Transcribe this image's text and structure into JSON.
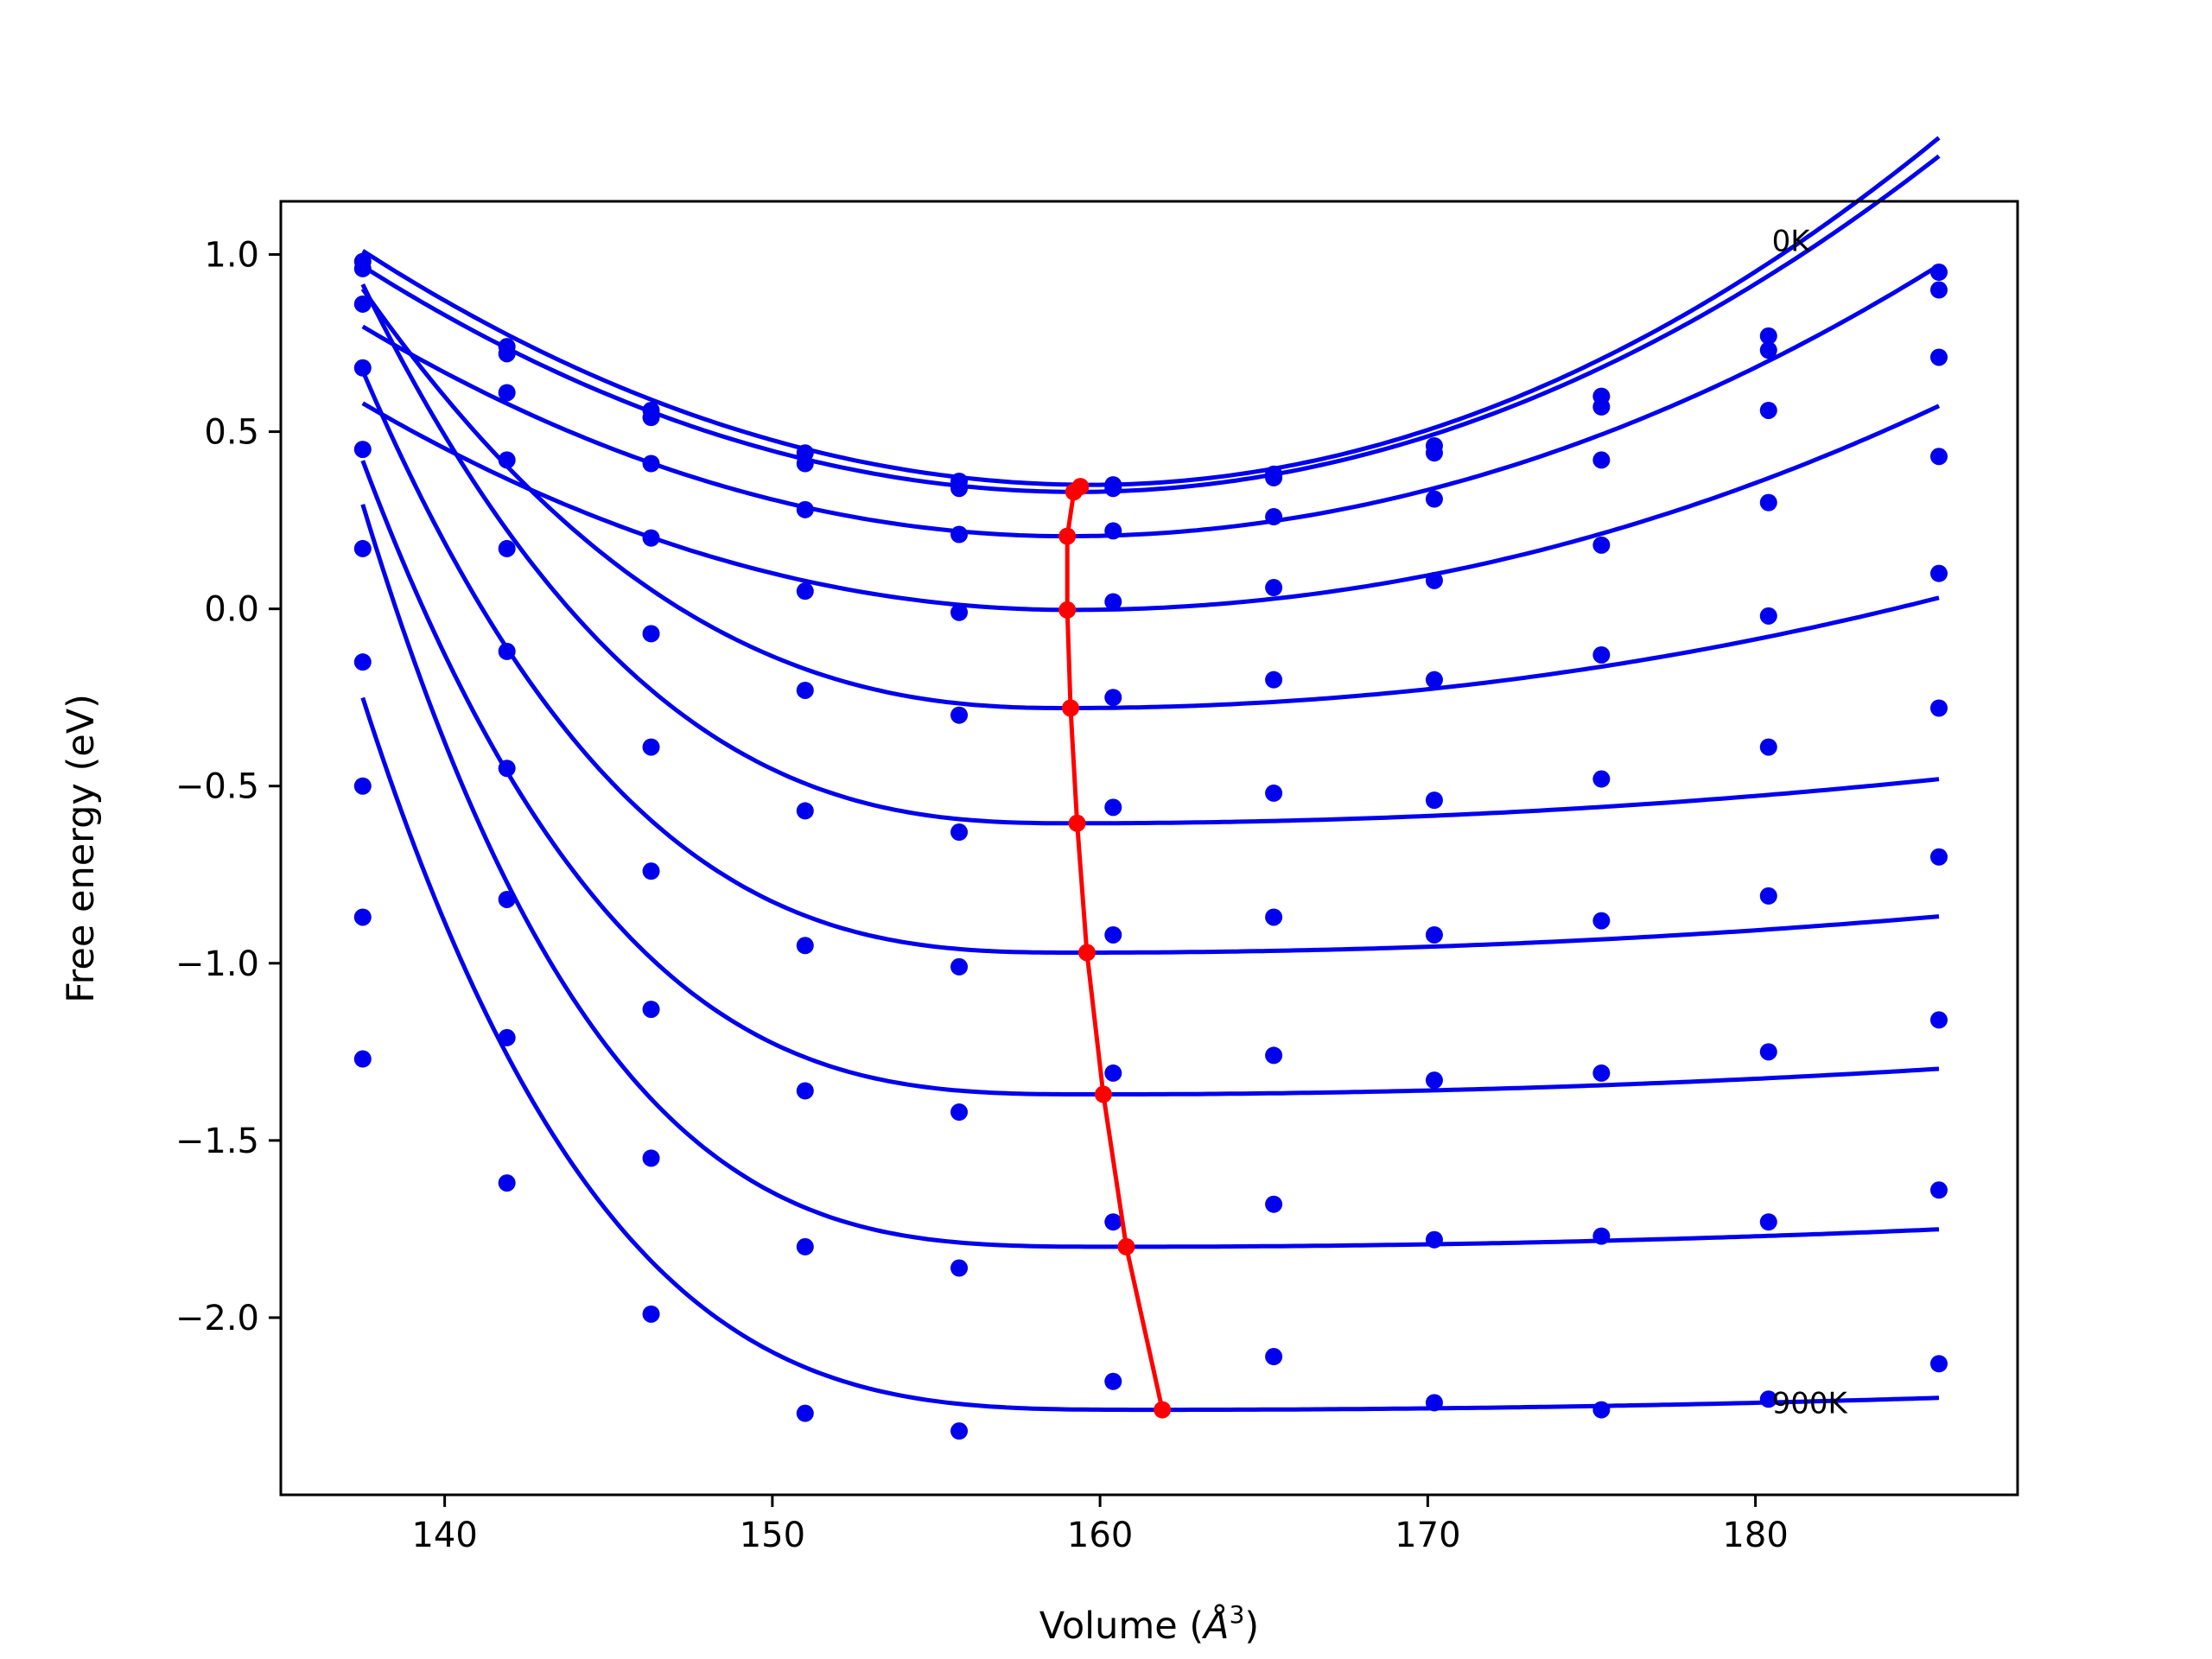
{
  "chart_data": {
    "type": "scatter",
    "title": "",
    "xlabel": "Volume (",
    "xlabel_symbol": "Å",
    "xlabel_exponent": "3",
    "xlabel_close": ")",
    "ylabel": "Free energy (eV)",
    "xlim": [
      135,
      188
    ],
    "ylim": [
      -2.5,
      1.15
    ],
    "xticks": [
      {
        "value": 140,
        "label": "140"
      },
      {
        "value": 150,
        "label": "150"
      },
      {
        "value": 160,
        "label": "160"
      },
      {
        "value": 170,
        "label": "170"
      },
      {
        "value": 180,
        "label": "180"
      }
    ],
    "yticks": [
      {
        "value": 1.0,
        "label": "1.0"
      },
      {
        "value": 0.5,
        "label": "0.5"
      },
      {
        "value": 0.0,
        "label": "0.0"
      },
      {
        "value": -0.5,
        "label": "−0.5"
      },
      {
        "value": -1.0,
        "label": "−1.0"
      },
      {
        "value": -1.5,
        "label": "−1.5"
      },
      {
        "value": -2.0,
        "label": "−2.0"
      }
    ],
    "grid": false,
    "annotations": [
      {
        "text": "0K",
        "x": 180.5,
        "y": 1.01
      },
      {
        "text": "900K",
        "x": 180.5,
        "y": -2.27
      }
    ],
    "volumes": [
      137.5,
      141.9,
      146.3,
      151.0,
      155.7,
      160.4,
      165.3,
      170.2,
      175.3,
      180.4,
      185.6
    ],
    "series": [
      {
        "points": [
          0.98,
          0.74,
          0.56,
          0.44,
          0.36,
          0.35,
          0.38,
          0.46,
          0.6,
          0.77,
          0.95
        ],
        "fit": {
          "v0": 159.7,
          "e0": 0.35,
          "ia": 0.00134,
          "ib": 0.00146,
          "p": 2
        }
      },
      {
        "points": [
          0.96,
          0.72,
          0.54,
          0.41,
          0.34,
          0.34,
          0.37,
          0.44,
          0.57,
          0.73,
          0.9
        ],
        "fit": {
          "v0": 159.3,
          "e0": 0.33,
          "ia": 0.00134,
          "ib": 0.00137,
          "p": 2
        }
      },
      {
        "points": [
          0.86,
          0.61,
          0.41,
          0.28,
          0.21,
          0.22,
          0.26,
          0.31,
          0.42,
          0.56,
          0.71
        ],
        "fit": {
          "v0": 159.0,
          "e0": 0.205,
          "ia": 0.00128,
          "ib": 0.00108,
          "p": 2
        }
      },
      {
        "points": [
          0.68,
          0.42,
          0.2,
          0.05,
          -0.01,
          0.02,
          0.06,
          0.08,
          0.18,
          0.3,
          0.43
        ],
        "fit": {
          "v0": 159.1,
          "e0": -0.003,
          "ia": 0.00125,
          "ib": 0.00082,
          "p": 2
        }
      },
      {
        "points": [
          0.45,
          0.17,
          -0.07,
          -0.23,
          -0.3,
          -0.25,
          -0.2,
          -0.2,
          -0.13,
          -0.02,
          0.1
        ],
        "fit": {
          "v0": 159.0,
          "e0": -0.28,
          "ia": 0.00075,
          "ib": 0.00044,
          "p": 2.4
        }
      },
      {
        "points": [
          0.17,
          -0.12,
          -0.39,
          -0.57,
          -0.63,
          -0.56,
          -0.52,
          -0.54,
          -0.48,
          -0.39,
          -0.28
        ],
        "fit": {
          "v0": 159.3,
          "e0": -0.605,
          "ia": 0.00037,
          "ib": 0.00018,
          "p": 2.7
        }
      },
      {
        "points": [
          -0.15,
          -0.45,
          -0.74,
          -0.95,
          -1.01,
          -0.92,
          -0.87,
          -0.92,
          -0.88,
          -0.81,
          -0.7
        ],
        "fit": {
          "v0": 159.5,
          "e0": -0.97,
          "ia": 0.00021,
          "ib": 0.00015,
          "p": 2.9
        }
      },
      {
        "points": [
          -0.5,
          -0.82,
          -1.13,
          -1.36,
          -1.42,
          -1.31,
          -1.26,
          -1.33,
          -1.31,
          -1.25,
          -1.16
        ],
        "fit": {
          "v0": 160.0,
          "e0": -1.37,
          "ia": 0.000115,
          "ib": 0.00011,
          "p": 3.1
        }
      },
      {
        "points": [
          -0.87,
          -1.21,
          -1.55,
          -1.8,
          -1.86,
          -1.73,
          -1.68,
          -1.78,
          -1.77,
          -1.73,
          -1.64
        ],
        "fit": {
          "v0": 160.8,
          "e0": -1.8,
          "ia": 4.7e-05,
          "ib": 8e-05,
          "p": 3.4
        }
      },
      {
        "points": [
          -1.27,
          -1.62,
          -1.99,
          -2.27,
          -2.32,
          -2.18,
          -2.11,
          -2.24,
          -2.26,
          -2.23,
          -2.13
        ],
        "fit": {
          "v0": 161.9,
          "e0": -2.26,
          "ia": 2.8e-05,
          "ib": 6e-05,
          "p": 3.5
        }
      }
    ],
    "minima": [
      {
        "x": 159.4,
        "y": 0.345
      },
      {
        "x": 159.2,
        "y": 0.33
      },
      {
        "x": 159.0,
        "y": 0.205
      },
      {
        "x": 159.0,
        "y": -0.003
      },
      {
        "x": 159.1,
        "y": -0.28
      },
      {
        "x": 159.3,
        "y": -0.605
      },
      {
        "x": 159.6,
        "y": -0.97
      },
      {
        "x": 160.1,
        "y": -1.37
      },
      {
        "x": 160.8,
        "y": -1.8
      },
      {
        "x": 161.9,
        "y": -2.26
      }
    ],
    "colors": {
      "curve": "#0000ee",
      "points": "#0000ee",
      "minima": "#ff0000",
      "axes": "#000000"
    }
  }
}
